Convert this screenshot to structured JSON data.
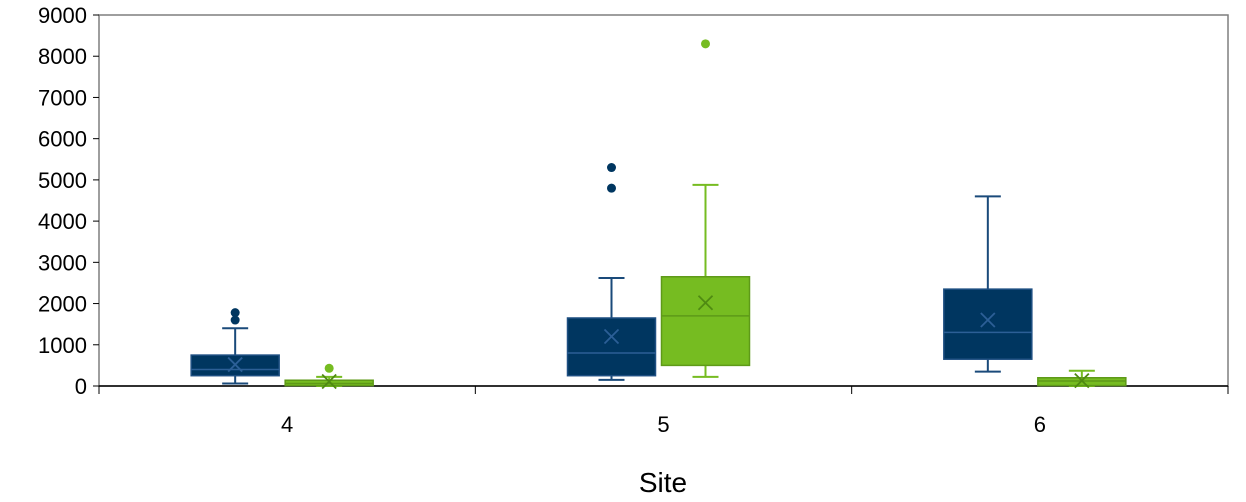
{
  "chart_data": {
    "type": "boxplot",
    "xlabel": "Site",
    "ylabel": "",
    "title": "",
    "ylim": [
      0,
      9000
    ],
    "y_ticks": [
      0,
      1000,
      2000,
      3000,
      4000,
      5000,
      6000,
      7000,
      8000,
      9000
    ],
    "categories": [
      "4",
      "5",
      "6"
    ],
    "grid": false,
    "legend": "none",
    "series": [
      {
        "color": "#003660",
        "boxes": [
          {
            "whisker_low": 60,
            "q1": 250,
            "median": 400,
            "q3": 750,
            "whisker_high": 1400,
            "mean": 520,
            "outliers": [
              1600,
              1780
            ]
          },
          {
            "whisker_low": 150,
            "q1": 250,
            "median": 800,
            "q3": 1650,
            "whisker_high": 2620,
            "mean": 1200,
            "outliers": [
              4800,
              5300
            ]
          },
          {
            "whisker_low": 350,
            "q1": 650,
            "median": 1300,
            "q3": 2350,
            "whisker_high": 4600,
            "mean": 1600,
            "outliers": []
          }
        ]
      },
      {
        "color": "#76bc21",
        "boxes": [
          {
            "whisker_low": 0,
            "q1": 10,
            "median": 60,
            "q3": 140,
            "whisker_high": 220,
            "mean": 110,
            "outliers": [
              430
            ]
          },
          {
            "whisker_low": 220,
            "q1": 500,
            "median": 1700,
            "q3": 2650,
            "whisker_high": 4880,
            "mean": 2020,
            "outliers": [
              8300
            ]
          },
          {
            "whisker_low": 0,
            "q1": 10,
            "median": 120,
            "q3": 200,
            "whisker_high": 370,
            "mean": 130,
            "outliers": []
          }
        ]
      }
    ]
  }
}
